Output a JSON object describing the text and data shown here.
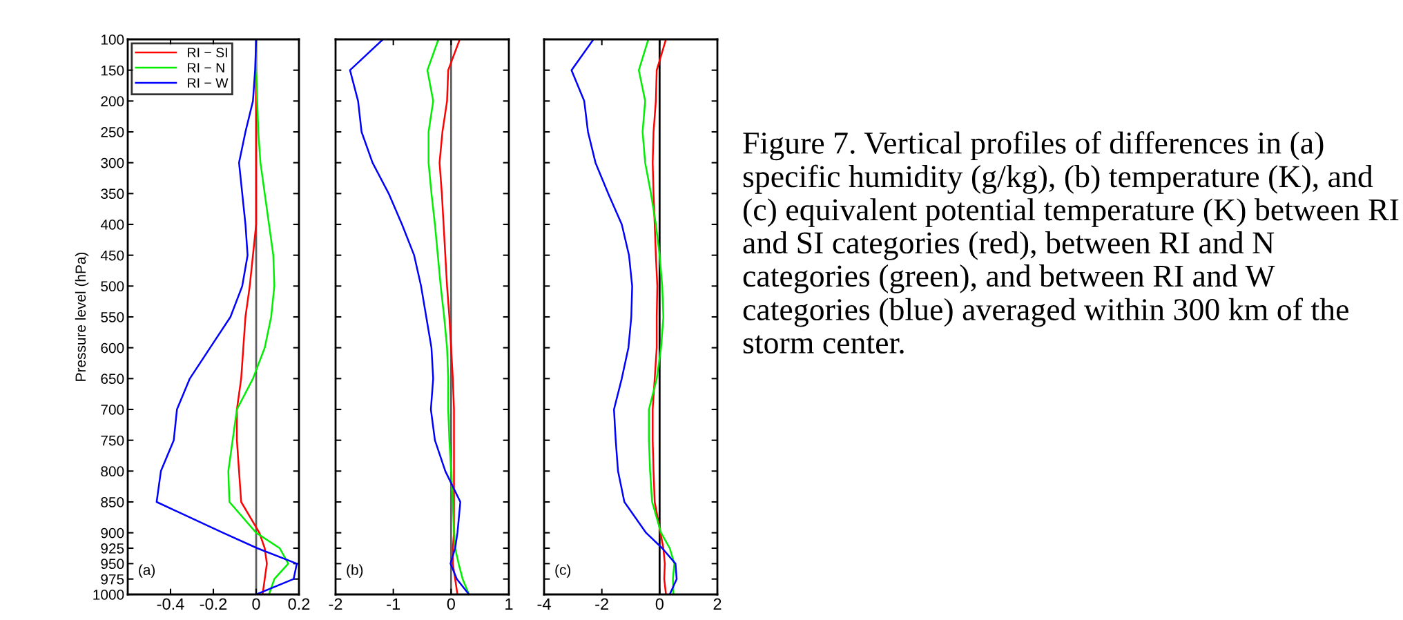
{
  "chart_data": [
    {
      "type": "line",
      "ylabel": "Pressure level (hPa)",
      "xlim": [
        -0.6,
        0.2
      ],
      "xticks": [
        -0.4,
        -0.2,
        0,
        0.2
      ],
      "ylim": [
        1000,
        100
      ],
      "yticks": [
        100,
        150,
        200,
        250,
        300,
        350,
        400,
        450,
        500,
        550,
        600,
        650,
        700,
        750,
        800,
        850,
        900,
        925,
        950,
        975,
        1000
      ],
      "orientation": "horizontal",
      "legend": "top left",
      "grid": false,
      "annotations": [
        "(a)"
      ],
      "ref_lines": [
        {
          "axis": "x",
          "value": 0,
          "color": "#606060"
        }
      ],
      "x": [
        100,
        150,
        200,
        250,
        300,
        350,
        400,
        450,
        500,
        550,
        600,
        650,
        700,
        750,
        800,
        850,
        900,
        925,
        950,
        975,
        1000
      ],
      "series": [
        {
          "name": "RI − SI",
          "color": "#ff0000",
          "values": [
            0,
            0,
            0,
            0,
            0,
            0,
            0,
            -0.015,
            -0.03,
            -0.05,
            -0.06,
            -0.07,
            -0.09,
            -0.09,
            -0.08,
            -0.07,
            0.015,
            0.04,
            0.05,
            0.04,
            0.03
          ]
        },
        {
          "name": "RI − N",
          "color": "#00ee00",
          "values": [
            0,
            0,
            0.005,
            0.01,
            0.02,
            0.04,
            0.06,
            0.08,
            0.085,
            0.07,
            0.04,
            -0.015,
            -0.09,
            -0.11,
            -0.13,
            -0.125,
            0,
            0.11,
            0.15,
            0.085,
            0.06
          ]
        },
        {
          "name": "RI − W",
          "color": "#0000ff",
          "values": [
            0,
            -0.005,
            -0.015,
            -0.05,
            -0.08,
            -0.065,
            -0.05,
            -0.04,
            -0.065,
            -0.12,
            -0.215,
            -0.31,
            -0.37,
            -0.385,
            -0.445,
            -0.465,
            -0.155,
            0.005,
            0.19,
            0.175,
            0
          ]
        }
      ]
    },
    {
      "type": "line",
      "xlim": [
        -2,
        1
      ],
      "xticks": [
        -2,
        -1,
        0,
        1
      ],
      "ylim": [
        1000,
        100
      ],
      "yticks": [
        100,
        150,
        200,
        250,
        300,
        350,
        400,
        450,
        500,
        550,
        600,
        650,
        700,
        750,
        800,
        850,
        900,
        925,
        950,
        975,
        1000
      ],
      "orientation": "horizontal",
      "tick_labels": "x",
      "grid": false,
      "annotations": [
        "(b)"
      ],
      "ref_lines": [
        {
          "axis": "x",
          "value": 0,
          "color": "#606060"
        }
      ],
      "x": [
        100,
        150,
        200,
        250,
        300,
        350,
        400,
        450,
        500,
        550,
        600,
        650,
        700,
        750,
        800,
        850,
        900,
        925,
        950,
        975,
        1000
      ],
      "series": [
        {
          "color": "#ff0000",
          "values": [
            0.15,
            -0.05,
            -0.07,
            -0.15,
            -0.2,
            -0.16,
            -0.13,
            -0.1,
            -0.07,
            -0.03,
            0,
            0.03,
            0.05,
            0.05,
            0.05,
            0.05,
            0.05,
            0.03,
            0.03,
            0.07,
            0.11
          ]
        },
        {
          "color": "#00ee00",
          "values": [
            -0.22,
            -0.41,
            -0.31,
            -0.39,
            -0.39,
            -0.34,
            -0.28,
            -0.23,
            -0.18,
            -0.12,
            -0.07,
            -0.05,
            -0.05,
            -0.03,
            0,
            0.03,
            0.05,
            0.07,
            0.13,
            0.2,
            0.31
          ]
        },
        {
          "color": "#0000ff",
          "values": [
            -1.18,
            -1.75,
            -1.61,
            -1.55,
            -1.36,
            -1.08,
            -0.85,
            -0.64,
            -0.52,
            -0.43,
            -0.34,
            -0.31,
            -0.35,
            -0.28,
            -0.1,
            0.16,
            0.11,
            0.07,
            -0.01,
            0.1,
            0.31
          ]
        }
      ]
    },
    {
      "type": "line",
      "xlim": [
        -4,
        2
      ],
      "xticks": [
        -4,
        -2,
        0,
        2
      ],
      "ylim": [
        1000,
        100
      ],
      "yticks": [
        100,
        150,
        200,
        250,
        300,
        350,
        400,
        450,
        500,
        550,
        600,
        650,
        700,
        750,
        800,
        850,
        900,
        925,
        950,
        975,
        1000
      ],
      "orientation": "horizontal",
      "tick_labels": "x",
      "grid": false,
      "annotations": [
        "(c)",
        "Figure 7. Vertical profiles of differences in (a) specific humidity (g/kg), (b) temperature (K), and (c) equivalent potential temperature (K) between RI and SI categories (red), between RI and N categories (green), and between RI and W categories (blue) averaged within 300 km of the storm center."
      ],
      "ref_lines": [
        {
          "axis": "x",
          "value": 0,
          "color": "#000000"
        }
      ],
      "x": [
        100,
        150,
        200,
        250,
        300,
        350,
        400,
        450,
        500,
        550,
        600,
        650,
        700,
        750,
        800,
        850,
        900,
        925,
        950,
        975,
        1000
      ],
      "series": [
        {
          "color": "#ff0000",
          "values": [
            0.22,
            -0.1,
            -0.13,
            -0.21,
            -0.24,
            -0.21,
            -0.17,
            -0.13,
            -0.08,
            -0.1,
            -0.1,
            -0.17,
            -0.24,
            -0.24,
            -0.21,
            -0.17,
            0.03,
            0.13,
            0.18,
            0.16,
            0.22
          ]
        },
        {
          "color": "#00ee00",
          "values": [
            -0.39,
            -0.72,
            -0.5,
            -0.59,
            -0.5,
            -0.3,
            -0.13,
            0,
            0.09,
            0.13,
            0.05,
            -0.1,
            -0.37,
            -0.37,
            -0.33,
            -0.26,
            0.05,
            0.35,
            0.51,
            0.46,
            0.48
          ]
        },
        {
          "color": "#0000ff",
          "values": [
            -2.29,
            -3.05,
            -2.61,
            -2.48,
            -2.22,
            -1.78,
            -1.31,
            -1.06,
            -0.95,
            -0.98,
            -1.08,
            -1.31,
            -1.58,
            -1.52,
            -1.44,
            -1.22,
            -0.47,
            0.09,
            0.55,
            0.59,
            0.35
          ]
        }
      ]
    }
  ]
}
